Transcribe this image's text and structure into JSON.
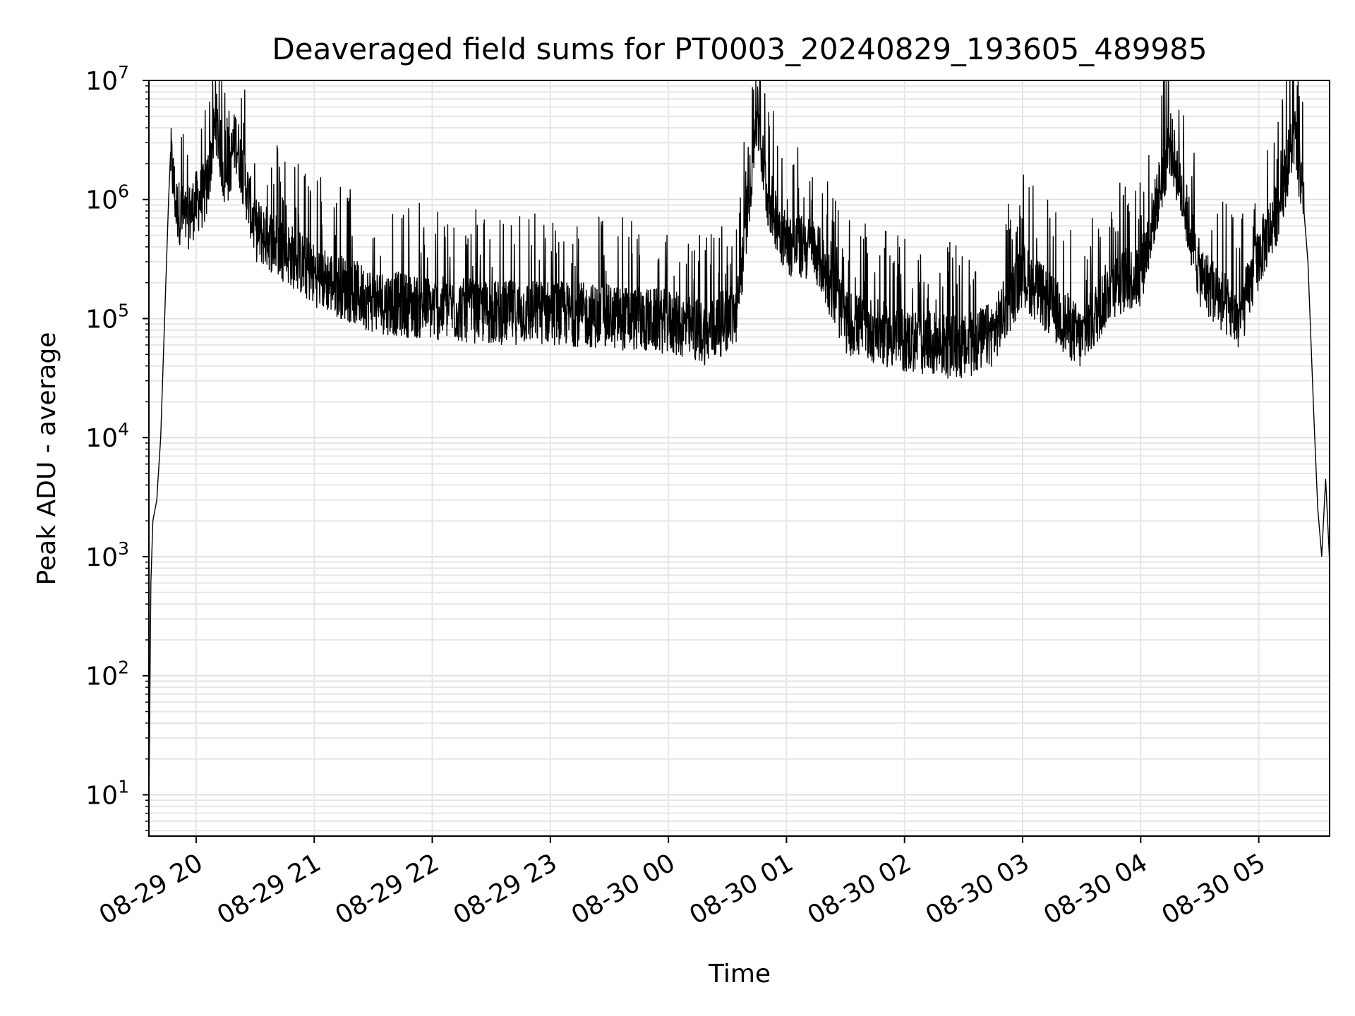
{
  "chart_data": {
    "type": "line",
    "title": "Deaveraged field sums for PT0003_20240829_193605_489985",
    "xlabel": "Time",
    "ylabel": "Peak ADU - average",
    "yscale": "log",
    "ylim": [
      4.5,
      10000000
    ],
    "xlim": [
      "08-29 19:36",
      "08-30 05:36"
    ],
    "x_ticks": [
      {
        "t": "08-29 20:00",
        "label": "08-29 20"
      },
      {
        "t": "08-29 21:00",
        "label": "08-29 21"
      },
      {
        "t": "08-29 22:00",
        "label": "08-29 22"
      },
      {
        "t": "08-29 23:00",
        "label": "08-29 23"
      },
      {
        "t": "08-30 00:00",
        "label": "08-30 00"
      },
      {
        "t": "08-30 01:00",
        "label": "08-30 01"
      },
      {
        "t": "08-30 02:00",
        "label": "08-30 02"
      },
      {
        "t": "08-30 03:00",
        "label": "08-30 03"
      },
      {
        "t": "08-30 04:00",
        "label": "08-30 04"
      },
      {
        "t": "08-30 05:00",
        "label": "08-30 05"
      }
    ],
    "y_ticks": [
      {
        "value": 10,
        "base": "10",
        "exp": "1"
      },
      {
        "value": 100,
        "base": "10",
        "exp": "2"
      },
      {
        "value": 1000,
        "base": "10",
        "exp": "3"
      },
      {
        "value": 10000,
        "base": "10",
        "exp": "4"
      },
      {
        "value": 100000,
        "base": "10",
        "exp": "5"
      },
      {
        "value": 1000000,
        "base": "10",
        "exp": "6"
      },
      {
        "value": 10000000,
        "base": "10",
        "exp": "7"
      }
    ],
    "grid": true,
    "series": [
      {
        "color": "#000000",
        "points": [
          [
            "08-29 19:36",
            8
          ],
          [
            "08-29 19:37",
            600
          ],
          [
            "08-29 19:38",
            2000
          ],
          [
            "08-29 19:40",
            3000
          ],
          [
            "08-29 19:42",
            10000
          ],
          [
            "08-29 19:44",
            100000
          ],
          [
            "08-29 19:46",
            1000000
          ],
          [
            "08-29 19:47",
            2500000
          ],
          [
            "08-29 19:50",
            900000
          ],
          [
            "08-29 19:55",
            700000
          ],
          [
            "08-29 20:00",
            1000000
          ],
          [
            "08-29 20:05",
            1200000
          ],
          [
            "08-29 20:10",
            5000000
          ],
          [
            "08-29 20:15",
            1400000
          ],
          [
            "08-29 20:20",
            3500000
          ],
          [
            "08-29 20:30",
            600000
          ],
          [
            "08-29 20:45",
            400000
          ],
          [
            "08-29 21:00",
            250000
          ],
          [
            "08-29 21:30",
            150000
          ],
          [
            "08-29 22:00",
            130000
          ],
          [
            "08-29 22:30",
            120000
          ],
          [
            "08-29 23:00",
            120000
          ],
          [
            "08-29 23:30",
            110000
          ],
          [
            "08-30 00:00",
            100000
          ],
          [
            "08-30 00:20",
            80000
          ],
          [
            "08-30 00:35",
            120000
          ],
          [
            "08-30 00:45",
            5500000
          ],
          [
            "08-30 00:50",
            1200000
          ],
          [
            "08-30 01:00",
            450000
          ],
          [
            "08-30 01:15",
            400000
          ],
          [
            "08-30 01:30",
            100000
          ],
          [
            "08-30 02:00",
            70000
          ],
          [
            "08-30 02:30",
            60000
          ],
          [
            "08-30 02:45",
            80000
          ],
          [
            "08-30 03:00",
            250000
          ],
          [
            "08-30 03:30",
            70000
          ],
          [
            "08-30 03:45",
            200000
          ],
          [
            "08-30 04:00",
            250000
          ],
          [
            "08-30 04:15",
            3300000
          ],
          [
            "08-30 04:30",
            250000
          ],
          [
            "08-30 04:50",
            100000
          ],
          [
            "08-30 05:00",
            350000
          ],
          [
            "08-30 05:10",
            900000
          ],
          [
            "08-30 05:18",
            3800000
          ],
          [
            "08-30 05:22",
            1300000
          ],
          [
            "08-30 05:25",
            300000
          ],
          [
            "08-30 05:28",
            15000
          ],
          [
            "08-30 05:30",
            2500
          ],
          [
            "08-30 05:32",
            1000
          ],
          [
            "08-30 05:34",
            4500
          ],
          [
            "08-30 05:36",
            900
          ]
        ]
      }
    ]
  }
}
